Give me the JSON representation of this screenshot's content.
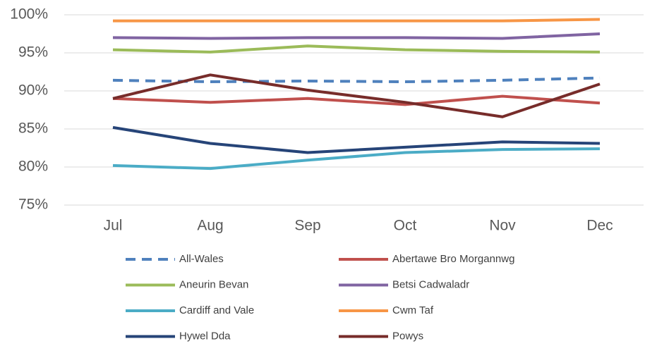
{
  "chart_data": {
    "type": "line",
    "categories": [
      "Jul",
      "Aug",
      "Sep",
      "Oct",
      "Nov",
      "Dec"
    ],
    "ylim": [
      75,
      100
    ],
    "yticks": [
      {
        "value": 75,
        "label": "75%"
      },
      {
        "value": 80,
        "label": "80%"
      },
      {
        "value": 85,
        "label": "85%"
      },
      {
        "value": 90,
        "label": "90%"
      },
      {
        "value": 95,
        "label": "95%"
      },
      {
        "value": 100,
        "label": "100%"
      }
    ],
    "grid": true,
    "legend": "bottom",
    "series": [
      {
        "name": "All-Wales",
        "color": "#4f81bd",
        "dashed": true,
        "values": [
          91.4,
          91.2,
          91.3,
          91.2,
          91.4,
          91.7
        ]
      },
      {
        "name": "Abertawe Bro Morgannwg",
        "color": "#c0504d",
        "values": [
          89.0,
          88.5,
          89.0,
          88.2,
          89.3,
          88.4
        ]
      },
      {
        "name": "Aneurin Bevan",
        "color": "#9bbb59",
        "values": [
          95.4,
          95.1,
          95.9,
          95.4,
          95.2,
          95.1
        ]
      },
      {
        "name": "Betsi Cadwaladr",
        "color": "#8064a2",
        "values": [
          97.0,
          96.9,
          97.0,
          97.0,
          96.9,
          97.5
        ]
      },
      {
        "name": "Cardiff and Vale",
        "color": "#4bacc6",
        "values": [
          80.2,
          79.8,
          80.9,
          81.9,
          82.3,
          82.4
        ]
      },
      {
        "name": "Cwm Taf",
        "color": "#f79646",
        "values": [
          99.2,
          99.2,
          99.2,
          99.2,
          99.2,
          99.4
        ]
      },
      {
        "name": "Hywel Dda",
        "color": "#264478",
        "values": [
          85.2,
          83.1,
          81.9,
          82.6,
          83.3,
          83.1
        ]
      },
      {
        "name": "Powys",
        "color": "#772c2a",
        "values": [
          89.0,
          92.1,
          90.1,
          88.5,
          86.6,
          90.9
        ]
      }
    ]
  }
}
